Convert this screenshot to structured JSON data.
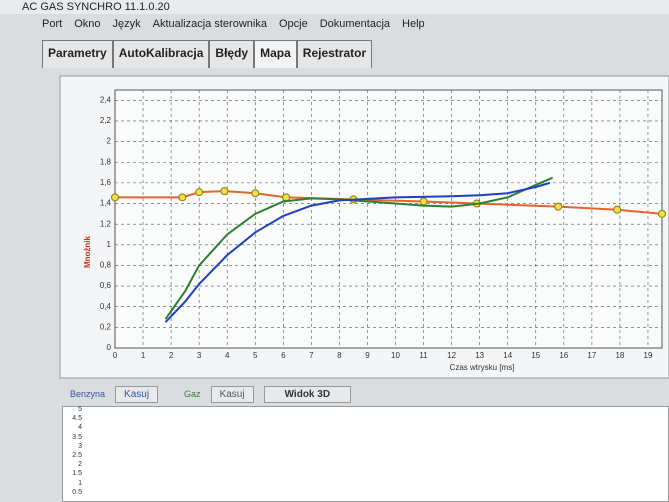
{
  "window": {
    "title": "AC GAS SYNCHRO  11.1.0.20"
  },
  "menu": [
    "Port",
    "Okno",
    "Język",
    "Aktualizacja sterownika",
    "Opcje",
    "Dokumentacja",
    "Help"
  ],
  "tabs": [
    "Parametry",
    "AutoKalibracja",
    "Błędy",
    "Mapa",
    "Rejestrator"
  ],
  "chart_data": {
    "type": "line",
    "x_label": "Czas wtrysku [ms]",
    "y_label": "Mnożnik",
    "xlim": [
      0,
      19.5
    ],
    "ylim": [
      0,
      2.5
    ],
    "xticks": [
      0,
      1,
      2,
      3,
      4,
      5,
      6,
      7,
      8,
      9,
      10,
      11,
      12,
      13,
      14,
      15,
      16,
      17,
      18,
      19
    ],
    "yticks": [
      0,
      {
        "value": 0.2,
        "label": "0,2"
      },
      {
        "value": 0.4,
        "label": "0,4"
      },
      {
        "value": 0.6,
        "label": "0,6"
      },
      {
        "value": 0.8,
        "label": "0,8"
      },
      1,
      {
        "value": 1.2,
        "label": "1,2"
      },
      {
        "value": 1.4,
        "label": "1,4"
      },
      {
        "value": 1.6,
        "label": "1,6"
      },
      {
        "value": 1.8,
        "label": "1,8"
      },
      2,
      {
        "value": 2.2,
        "label": "2,2"
      },
      {
        "value": 2.4,
        "label": "2,4"
      }
    ],
    "grid": true,
    "series": [
      {
        "color": "#e0662a",
        "markers": true,
        "x": [
          0,
          2.4,
          3,
          3.9,
          5,
          6.1,
          8.5,
          11,
          12.9,
          15.8,
          17.9,
          19.5
        ],
        "values": [
          1.46,
          1.46,
          1.51,
          1.52,
          1.5,
          1.46,
          1.44,
          1.42,
          1.4,
          1.37,
          1.34,
          1.3
        ]
      },
      {
        "color": "#2e7d32",
        "markers": false,
        "x": [
          1.8,
          2.5,
          3,
          4,
          5,
          6,
          7,
          8,
          10,
          11,
          12,
          13,
          14,
          15,
          15.6
        ],
        "values": [
          0.28,
          0.55,
          0.8,
          1.1,
          1.3,
          1.42,
          1.45,
          1.44,
          1.4,
          1.38,
          1.37,
          1.4,
          1.46,
          1.58,
          1.65
        ]
      },
      {
        "color": "#1f3fc4",
        "markers": false,
        "x": [
          1.8,
          2.5,
          3,
          4,
          5,
          6,
          7,
          8,
          10,
          12,
          13,
          14,
          15,
          15.5
        ],
        "values": [
          0.25,
          0.45,
          0.62,
          0.9,
          1.12,
          1.28,
          1.38,
          1.43,
          1.46,
          1.47,
          1.48,
          1.5,
          1.56,
          1.6
        ]
      }
    ]
  },
  "controls": {
    "benzyna": "Benzyna",
    "kasuj_1": "Kasuj",
    "gaz": "Gaz",
    "kasuj_2": "Kasuj",
    "widok": "Widok 3D"
  },
  "lower_panel": {
    "yticks": [
      "5",
      "4.5",
      "4",
      "3.5",
      "3",
      "2.5",
      "2",
      "1.5",
      "1",
      "0.5"
    ]
  }
}
